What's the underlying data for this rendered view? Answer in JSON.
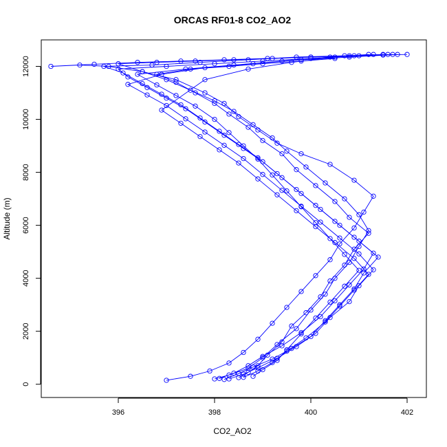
{
  "chart_data": {
    "type": "line",
    "title": "ORCAS RF01-8 CO2_AO2",
    "xlabel": "CO2_AO2",
    "ylabel": "Altitude (m)",
    "xlim": [
      394.4,
      402.4
    ],
    "ylim": [
      -500,
      13000
    ],
    "xticks": [
      396,
      398,
      400,
      402
    ],
    "yticks": [
      0,
      2000,
      4000,
      6000,
      8000,
      10000,
      12000
    ],
    "grid": false,
    "legend": "none",
    "markers": "open-circle",
    "series_color": "#0000ff",
    "series": [
      {
        "x": [
          397.0,
          397.5,
          397.9,
          398.3,
          398.6,
          398.9,
          399.2,
          399.5,
          399.8,
          400.1,
          400.4,
          400.6,
          400.9,
          401.1,
          401.3,
          400.9,
          400.4,
          399.8,
          399.3,
          398.9,
          398.5,
          398.2,
          397.8,
          397.2,
          396.5,
          395.8,
          395.2,
          394.6,
          395.5,
          396.4,
          397.3,
          398.2,
          399.1,
          400.0,
          400.9,
          401.5,
          402.0
        ],
        "y": [
          150,
          300,
          500,
          800,
          1200,
          1700,
          2300,
          2900,
          3500,
          4100,
          4700,
          5300,
          5900,
          6500,
          7100,
          7700,
          8300,
          8700,
          9100,
          9600,
          10100,
          10600,
          11000,
          11500,
          11800,
          12000,
          12050,
          12000,
          12080,
          12150,
          12200,
          12250,
          12300,
          12350,
          12400,
          12430,
          12450
        ]
      },
      {
        "x": [
          398.0,
          398.3,
          398.7,
          399.0,
          399.3,
          399.7,
          400.0,
          400.3,
          400.5,
          400.8,
          401.0,
          401.2,
          401.0,
          400.7,
          400.3,
          399.9,
          399.5,
          399.2,
          398.8,
          398.4,
          398.0,
          397.5,
          397.0,
          396.5,
          396.0,
          396.8,
          397.6,
          398.4,
          399.2,
          400.0,
          400.8,
          401.5
        ],
        "y": [
          200,
          350,
          600,
          1000,
          1500,
          2100,
          2800,
          3400,
          4000,
          4600,
          5200,
          5800,
          6400,
          7000,
          7600,
          8200,
          8800,
          9300,
          9800,
          10300,
          10700,
          11100,
          11500,
          11800,
          12100,
          12150,
          12200,
          12250,
          12300,
          12350,
          12400,
          12450
        ]
      },
      {
        "x": [
          398.5,
          398.7,
          398.9,
          399.1,
          399.4,
          399.6,
          399.9,
          400.2,
          400.4,
          400.7,
          400.9,
          401.2,
          400.8,
          400.5,
          400.1,
          399.7,
          399.4,
          399.0,
          398.7,
          398.3,
          398.0,
          397.6,
          397.2,
          396.8,
          397.5,
          398.3,
          399.0,
          399.8,
          400.5
        ],
        "y": [
          250,
          450,
          700,
          1100,
          1600,
          2200,
          2700,
          3300,
          3900,
          4500,
          5100,
          5700,
          6300,
          6900,
          7500,
          8100,
          8700,
          9200,
          9700,
          10200,
          10600,
          11000,
          11400,
          11700,
          11900,
          12000,
          12100,
          12200,
          12300
        ]
      },
      {
        "x": [
          398.2,
          398.5,
          398.8,
          399.2,
          399.6,
          400.0,
          400.3,
          400.6,
          400.9,
          401.1,
          401.4,
          401.0,
          400.6,
          400.2,
          399.8,
          399.4,
          399.0,
          398.6,
          398.2,
          397.8,
          397.4,
          397.0,
          396.6,
          396.2,
          396.0,
          397.0,
          398.0,
          399.0,
          400.0,
          401.0,
          401.7
        ],
        "y": [
          180,
          400,
          650,
          950,
          1350,
          1800,
          2400,
          3000,
          3600,
          4200,
          4800,
          5400,
          6000,
          6600,
          7200,
          7800,
          8400,
          8900,
          9400,
          9900,
          10400,
          10800,
          11200,
          11600,
          11900,
          12000,
          12100,
          12200,
          12300,
          12400,
          12450
        ]
      },
      {
        "x": [
          398.8,
          399.0,
          399.3,
          399.5,
          399.8,
          400.1,
          400.4,
          400.7,
          401.0,
          400.7,
          400.4,
          400.1,
          399.8,
          399.5,
          399.2,
          398.9,
          398.6,
          398.3,
          398.0,
          397.6,
          397.2,
          396.8,
          396.4,
          397.4,
          398.4,
          399.4,
          400.4,
          401.2
        ],
        "y": [
          300,
          550,
          900,
          1300,
          1900,
          2500,
          3100,
          3700,
          4300,
          4900,
          5500,
          6100,
          6700,
          7300,
          7900,
          8500,
          9000,
          9500,
          10000,
          10500,
          10900,
          11300,
          11700,
          11900,
          12050,
          12200,
          12350,
          12450
        ]
      },
      {
        "x": [
          398.1,
          398.4,
          398.7,
          399.0,
          399.4,
          399.8,
          400.2,
          400.5,
          400.8,
          401.1,
          401.3,
          400.9,
          400.5,
          400.1,
          399.7,
          399.3,
          398.9,
          398.5,
          398.1,
          397.7,
          397.3,
          396.9,
          396.5,
          396.1,
          395.7,
          396.7,
          397.7,
          398.7,
          399.7,
          400.7,
          401.6
        ],
        "y": [
          220,
          420,
          700,
          1050,
          1450,
          1950,
          2550,
          3150,
          3750,
          4350,
          4950,
          5550,
          6150,
          6750,
          7350,
          7950,
          8550,
          9050,
          9550,
          10050,
          10550,
          10950,
          11350,
          11750,
          12000,
          12050,
          12150,
          12250,
          12350,
          12400,
          12450
        ]
      },
      {
        "x": [
          398.6,
          398.9,
          399.2,
          399.5,
          399.9,
          400.3,
          400.6,
          400.9,
          401.2,
          400.9,
          400.5,
          400.1,
          399.7,
          399.3,
          398.9,
          398.5,
          398.1,
          397.7,
          397.3,
          396.9,
          397.8,
          398.7,
          399.6,
          400.5,
          401.3
        ],
        "y": [
          260,
          500,
          820,
          1250,
          1750,
          2350,
          2950,
          3550,
          4150,
          4750,
          5350,
          5950,
          6550,
          7150,
          7750,
          8350,
          8850,
          9350,
          9850,
          10350,
          11500,
          11900,
          12150,
          12350,
          12450
        ]
      },
      {
        "x": [
          398.3,
          398.6,
          398.9,
          399.3,
          399.7,
          400.1,
          400.4,
          400.8,
          401.0,
          401.3,
          401.0,
          400.6,
          400.2,
          399.8,
          399.4,
          399.0,
          398.6,
          398.2,
          397.8,
          397.4,
          397.0,
          396.6,
          396.2,
          396.9,
          397.8,
          398.8,
          399.8,
          400.8,
          401.8
        ],
        "y": [
          200,
          380,
          620,
          980,
          1420,
          1920,
          2520,
          3120,
          3720,
          4320,
          4920,
          5520,
          6120,
          6720,
          7320,
          7920,
          8520,
          9020,
          9520,
          10020,
          10520,
          10920,
          11320,
          11700,
          11950,
          12100,
          12250,
          12350,
          12450
        ]
      }
    ]
  }
}
